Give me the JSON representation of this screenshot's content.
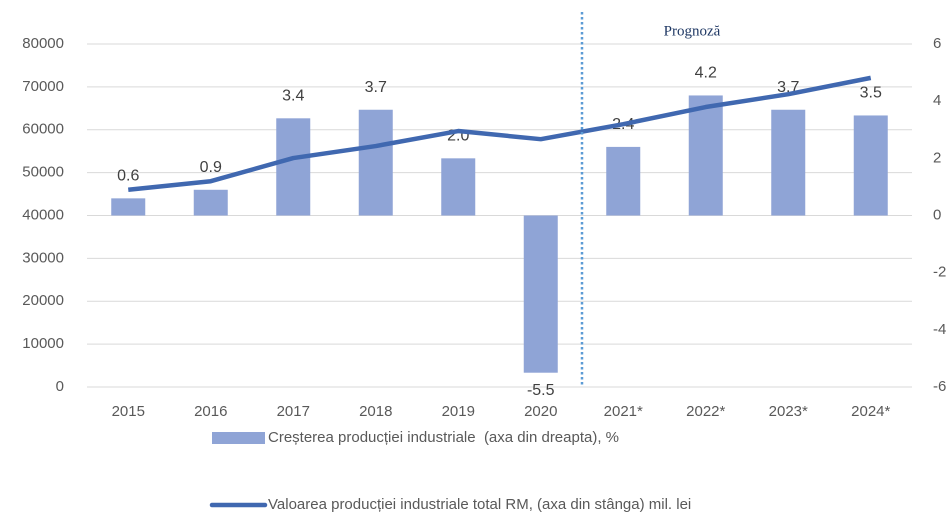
{
  "chart_data": {
    "type": "bar",
    "categories": [
      "2015",
      "2016",
      "2017",
      "2018",
      "2019",
      "2020",
      "2021*",
      "2022*",
      "2023*",
      "2024*"
    ],
    "series": [
      {
        "name": "Creșterea producției industriale  (axa din dreapta), %",
        "type": "bar",
        "axis": "y2",
        "color": "#8fa4d6",
        "values": [
          0.6,
          0.9,
          3.4,
          3.7,
          2.0,
          -5.5,
          2.4,
          4.2,
          3.7,
          3.5
        ],
        "value_labels": [
          "0.6",
          "0.9",
          "3.4",
          "3.7",
          "2.0",
          "-5.5",
          "2.4",
          "4.2",
          "3.7",
          "3.5"
        ]
      },
      {
        "name": "Valoarea producției industriale total RM, (axa din stânga) mil. lei",
        "type": "line",
        "axis": "y",
        "color": "#4068b0",
        "values": [
          46000,
          48000,
          53400,
          56200,
          59700,
          57800,
          61300,
          65300,
          68300,
          72100
        ]
      }
    ],
    "ylim": [
      0,
      80000
    ],
    "yticks": [
      0,
      10000,
      20000,
      30000,
      40000,
      50000,
      60000,
      70000,
      80000
    ],
    "y2lim": [
      -6,
      6
    ],
    "y2ticks": [
      -6,
      -4,
      -2,
      0,
      2,
      4,
      6
    ],
    "grid": true,
    "annotations": [
      {
        "text": "Prognoză",
        "x": "2021*"
      }
    ]
  }
}
